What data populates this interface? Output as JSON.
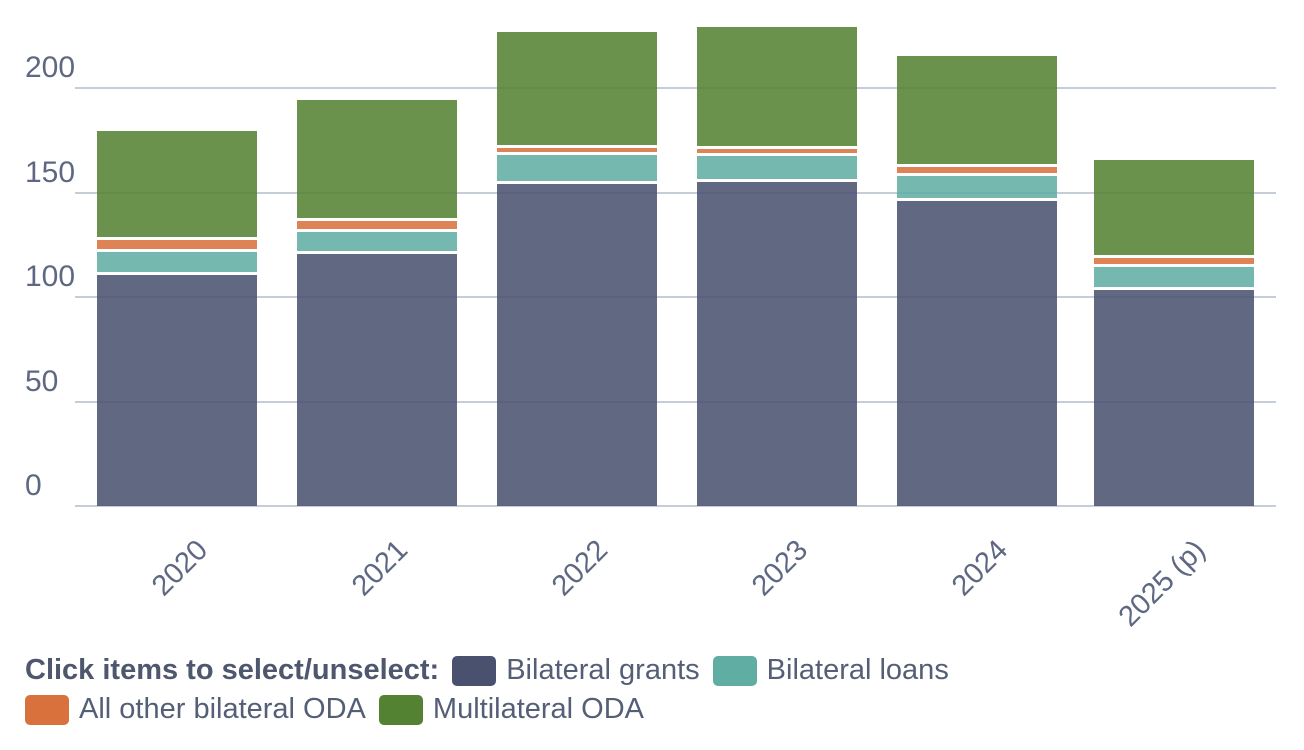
{
  "chart_data": {
    "type": "bar",
    "stacked": true,
    "title": "",
    "xlabel": "",
    "ylabel": "",
    "categories": [
      "2020",
      "2021",
      "2022",
      "2023",
      "2024",
      "2025 (p)"
    ],
    "series": [
      {
        "name": "Bilateral grants",
        "color": "#49516f",
        "values": [
          111.3,
          121.5,
          154.8,
          156.0,
          147.0,
          104.1
        ]
      },
      {
        "name": "Bilateral loans",
        "color": "#5fada3",
        "values": [
          10.9,
          10.6,
          13.9,
          12.3,
          11.7,
          10.9
        ]
      },
      {
        "name": "All other bilateral ODA",
        "color": "#d9713d",
        "values": [
          5.9,
          5.1,
          3.7,
          3.3,
          4.6,
          4.6
        ]
      },
      {
        "name": "Multilateral ODA",
        "color": "#548233",
        "values": [
          51.5,
          57.3,
          54.4,
          57.6,
          52.0,
          46.1
        ]
      }
    ],
    "totals": [
      179.6,
      194.5,
      226.8,
      229.2,
      215.3,
      165.7
    ],
    "ylim": [
      0,
      230
    ],
    "yticks": [
      0,
      50,
      100,
      150,
      200
    ],
    "grid": true,
    "legend_position": "bottom"
  },
  "legend": {
    "intro": "Click items to select/unselect:",
    "items": [
      {
        "label": "Bilateral grants",
        "color": "#49516f"
      },
      {
        "label": "Bilateral loans",
        "color": "#5fada3"
      },
      {
        "label": "All other bilateral ODA",
        "color": "#d9713d"
      },
      {
        "label": "Multilateral ODA",
        "color": "#548233"
      }
    ]
  },
  "colors": {
    "grid": "#c5ccda",
    "axis_text": "#5e6883",
    "legend_text": "#555e77",
    "background": "#ffffff"
  }
}
